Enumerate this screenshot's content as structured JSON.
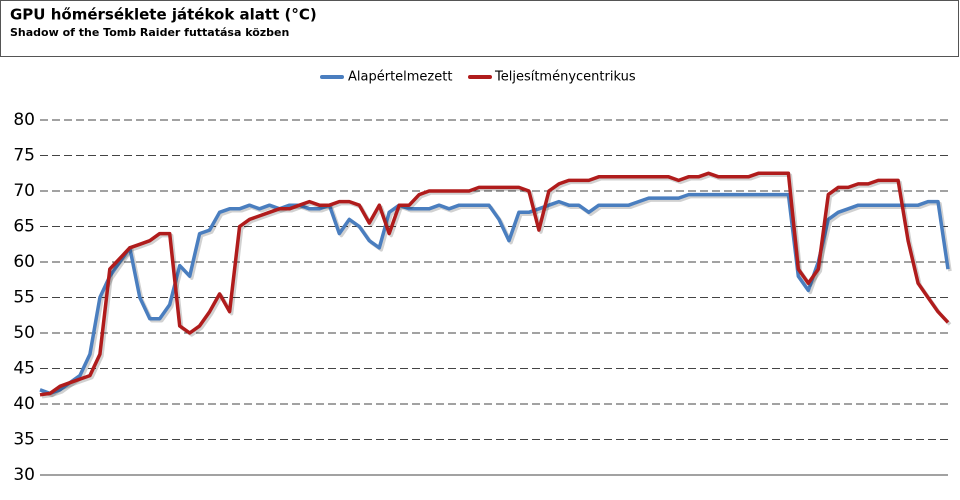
{
  "chart_data": {
    "type": "line",
    "title": "GPU hőmérséklete játékok alatt (°C)",
    "subtitle": "Shadow of the Tomb Raider futtatása közben",
    "ylim": [
      30,
      80
    ],
    "yticks": [
      30,
      35,
      40,
      45,
      50,
      55,
      60,
      65,
      70,
      75,
      80
    ],
    "grid": true,
    "legend": "top",
    "series": [
      {
        "name": "Alapértelmezett",
        "color": "#4a7ebf",
        "values": [
          42,
          41.5,
          42,
          43,
          44,
          47,
          55,
          58,
          60,
          62,
          55,
          52,
          52,
          54,
          59.5,
          58,
          64,
          64.5,
          67,
          67.5,
          67.5,
          68,
          67.5,
          68,
          67.5,
          68,
          68,
          67.5,
          67.5,
          68,
          64,
          66,
          65,
          63,
          62,
          67,
          68,
          67.5,
          67.5,
          67.5,
          68,
          67.5,
          68,
          68,
          68,
          68,
          66,
          63,
          67,
          67,
          67.5,
          68,
          68.5,
          68,
          68,
          67,
          68,
          68,
          68,
          68,
          68.5,
          69,
          69,
          69,
          69,
          69.5,
          69.5,
          69.5,
          69.5,
          69.5,
          69.5,
          69.5,
          69.5,
          69.5,
          69.5,
          69.5,
          58,
          56,
          60,
          66,
          67,
          67.5,
          68,
          68,
          68,
          68,
          68,
          68,
          68,
          68.5,
          68.5,
          59
        ]
      },
      {
        "name": "Teljesítménycentrikus",
        "color": "#b01c1c",
        "values": [
          41.3,
          41.5,
          42.5,
          43,
          43.5,
          44,
          47,
          59,
          60.5,
          62,
          62.5,
          63,
          64,
          64,
          51,
          50,
          51,
          53,
          55.5,
          53,
          65,
          66,
          66.5,
          67,
          67.5,
          67.5,
          68,
          68.5,
          68,
          68,
          68.5,
          68.5,
          68,
          65.5,
          68,
          64,
          68,
          68,
          69.5,
          70,
          70,
          70,
          70,
          70,
          70.5,
          70.5,
          70.5,
          70.5,
          70.5,
          70,
          64.5,
          70,
          71,
          71.5,
          71.5,
          71.5,
          72,
          72,
          72,
          72,
          72,
          72,
          72,
          72,
          71.5,
          72,
          72,
          72.5,
          72,
          72,
          72,
          72,
          72.5,
          72.5,
          72.5,
          72.5,
          59,
          57,
          59,
          69.5,
          70.5,
          70.5,
          71,
          71,
          71.5,
          71.5,
          71.5,
          63,
          57,
          55,
          53,
          51.5
        ]
      }
    ]
  }
}
